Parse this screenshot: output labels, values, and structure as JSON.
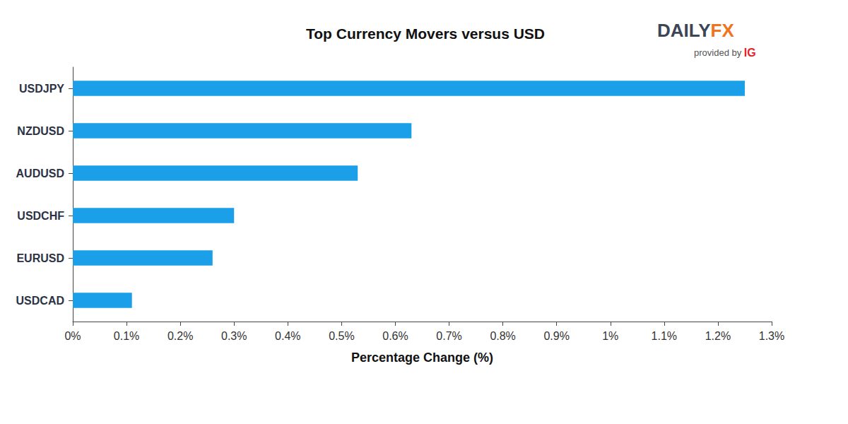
{
  "chart_data": {
    "type": "bar",
    "title": "Top Currency Movers versus USD",
    "brand": {
      "name": "DAILYFX",
      "note": "provided by IG"
    },
    "orientation": "horizontal",
    "categories": [
      "USDJPY",
      "NZDUSD",
      "AUDUSD",
      "USDCHF",
      "EURUSD",
      "USDCAD"
    ],
    "values": [
      1.25,
      0.63,
      0.53,
      0.3,
      0.26,
      0.11
    ],
    "color": "#1a9fe8",
    "xlabel": "Percentage Change (%)",
    "xlim": [
      0,
      1.3
    ],
    "xticks": [
      {
        "value": 0,
        "label": "0%"
      },
      {
        "value": 0.1,
        "label": "0.1%"
      },
      {
        "value": 0.2,
        "label": "0.2%"
      },
      {
        "value": 0.3,
        "label": "0.3%"
      },
      {
        "value": 0.4,
        "label": "0.4%"
      },
      {
        "value": 0.5,
        "label": "0.5%"
      },
      {
        "value": 0.6,
        "label": "0.6%"
      },
      {
        "value": 0.7,
        "label": "0.7%"
      },
      {
        "value": 0.8,
        "label": "0.8%"
      },
      {
        "value": 0.9,
        "label": "0.9%"
      },
      {
        "value": 1,
        "label": "1%"
      },
      {
        "value": 1.1,
        "label": "1.1%"
      },
      {
        "value": 1.2,
        "label": "1.2%"
      },
      {
        "value": 1.3,
        "label": "1.3%"
      }
    ],
    "grid": false
  }
}
